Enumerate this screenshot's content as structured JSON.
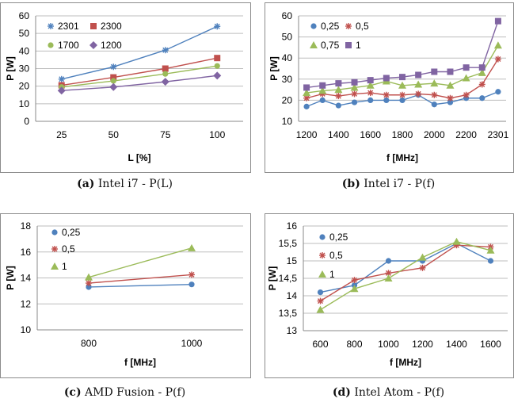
{
  "figures": [
    {
      "caption_tag": "(a)",
      "caption_text": "Intel i7 - P(L)"
    },
    {
      "caption_tag": "(b)",
      "caption_text": "Intel i7 - P(f)"
    },
    {
      "caption_tag": "(c)",
      "caption_text": "AMD Fusion - P(f)"
    },
    {
      "caption_tag": "(d)",
      "caption_text": "Intel Atom - P(f)"
    }
  ],
  "chart_data": [
    {
      "type": "line",
      "title": "",
      "xlabel": "L [%]",
      "ylabel": "P [W]",
      "categories": [
        "25",
        "50",
        "75",
        "100"
      ],
      "ylim": [
        0,
        60
      ],
      "yticks": [
        "0",
        "10",
        "20",
        "30",
        "40",
        "50",
        "60"
      ],
      "grid": true,
      "legend": "top-left, two columns",
      "series": [
        {
          "name": "2301",
          "color": "#4f81bd",
          "marker": "star",
          "values": [
            24,
            31,
            40.5,
            54
          ]
        },
        {
          "name": "2300",
          "color": "#c0504d",
          "marker": "square",
          "values": [
            20.5,
            25,
            30,
            36
          ]
        },
        {
          "name": "1700",
          "color": "#9bbb59",
          "marker": "circle",
          "values": [
            19.5,
            23,
            27,
            31.5
          ]
        },
        {
          "name": "1200",
          "color": "#8064a2",
          "marker": "diamond",
          "values": [
            17.5,
            19.5,
            22.5,
            26
          ]
        }
      ]
    },
    {
      "type": "line",
      "title": "",
      "xlabel": "f [MHz]",
      "ylabel": "P [W]",
      "categories": [
        "1200",
        "1300",
        "1400",
        "1500",
        "1600",
        "1700",
        "1800",
        "1900",
        "2000",
        "2100",
        "2200",
        "2300",
        "2301"
      ],
      "xticks": [
        "1200",
        "1400",
        "1600",
        "1800",
        "2000",
        "2200",
        "2301"
      ],
      "ylim": [
        10,
        60
      ],
      "yticks": [
        "10",
        "20",
        "30",
        "40",
        "50",
        "60"
      ],
      "grid": true,
      "legend": "top-left, two columns",
      "series": [
        {
          "name": "0,25",
          "color": "#4f81bd",
          "marker": "circle",
          "values": [
            17,
            20,
            17.5,
            19,
            20,
            20,
            20,
            22.5,
            18,
            19,
            21,
            21,
            24
          ]
        },
        {
          "name": "0,5",
          "color": "#c0504d",
          "marker": "star",
          "values": [
            21,
            23,
            22,
            23,
            23.5,
            22.5,
            22.5,
            23,
            22.5,
            21,
            22.5,
            27.5,
            39.5
          ]
        },
        {
          "name": "0,75",
          "color": "#9bbb59",
          "marker": "triangle",
          "values": [
            23.5,
            24.5,
            25,
            26,
            27,
            29,
            27,
            27.5,
            28,
            27,
            30.5,
            33,
            46
          ]
        },
        {
          "name": "1",
          "color": "#8064a2",
          "marker": "square",
          "values": [
            26,
            27,
            28,
            28.5,
            29.5,
            30.5,
            31,
            32,
            33.5,
            33.5,
            35.5,
            35.5,
            57.5
          ]
        }
      ]
    },
    {
      "type": "line",
      "title": "",
      "xlabel": "f [MHz]",
      "ylabel": "P [W]",
      "categories": [
        "800",
        "1000"
      ],
      "ylim": [
        10,
        18
      ],
      "yticks": [
        "10",
        "12",
        "14",
        "16",
        "18"
      ],
      "grid": true,
      "legend": "top-left",
      "series": [
        {
          "name": "0,25",
          "color": "#4f81bd",
          "marker": "circle",
          "values": [
            13.3,
            13.5
          ]
        },
        {
          "name": "0,5",
          "color": "#c0504d",
          "marker": "star",
          "values": [
            13.6,
            14.25
          ]
        },
        {
          "name": "1",
          "color": "#9bbb59",
          "marker": "triangle",
          "values": [
            14.05,
            16.3
          ]
        }
      ]
    },
    {
      "type": "line",
      "title": "",
      "xlabel": "f [MHz]",
      "ylabel": "P [W]",
      "categories": [
        "600",
        "800",
        "1000",
        "1200",
        "1400",
        "1600"
      ],
      "ylim": [
        13,
        16
      ],
      "yticks": [
        "13",
        "13,5",
        "14",
        "14,5",
        "15",
        "15,5",
        "16"
      ],
      "grid": true,
      "legend": "top-left",
      "series": [
        {
          "name": "0,25",
          "color": "#4f81bd",
          "marker": "circle",
          "values": [
            14.1,
            14.3,
            15,
            15,
            15.5,
            15
          ]
        },
        {
          "name": "0,5",
          "color": "#c0504d",
          "marker": "star",
          "values": [
            13.85,
            14.45,
            14.65,
            14.8,
            15.45,
            15.4
          ]
        },
        {
          "name": "1",
          "color": "#9bbb59",
          "marker": "triangle",
          "values": [
            13.6,
            14.2,
            14.5,
            15.1,
            15.55,
            15.3
          ]
        }
      ]
    }
  ]
}
